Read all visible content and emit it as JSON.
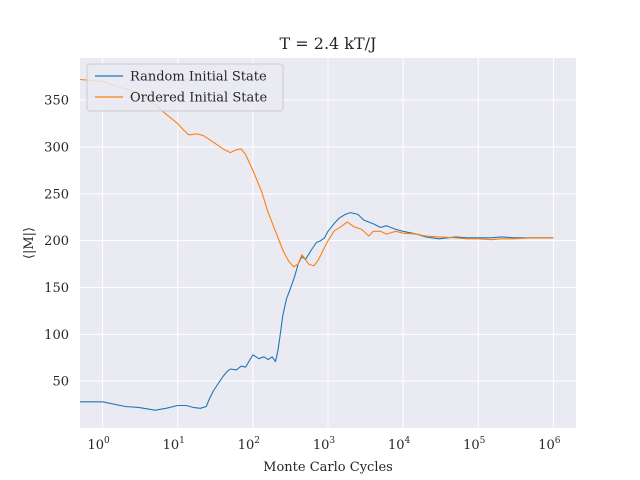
{
  "chart_data": {
    "type": "line",
    "title": "T = 2.4 kT/J",
    "xlabel": "Monte Carlo Cycles",
    "ylabel": "⟨|M|⟩",
    "x_scale": "log",
    "xlim": [
      0.5,
      2000000
    ],
    "ylim": [
      0,
      395
    ],
    "x_ticks": [
      {
        "value": 1,
        "label": "10",
        "exp": "0"
      },
      {
        "value": 10,
        "label": "10",
        "exp": "1"
      },
      {
        "value": 100,
        "label": "10",
        "exp": "2"
      },
      {
        "value": 1000,
        "label": "10",
        "exp": "3"
      },
      {
        "value": 10000,
        "label": "10",
        "exp": "4"
      },
      {
        "value": 100000,
        "label": "10",
        "exp": "5"
      },
      {
        "value": 1000000,
        "label": "10",
        "exp": "6"
      }
    ],
    "y_ticks": [
      50,
      100,
      150,
      200,
      250,
      300,
      350
    ],
    "grid": true,
    "legend_position": "top-left",
    "background_color": "#eaeaf2",
    "series": [
      {
        "name": "Random Initial State",
        "color": "#1f77b4",
        "points": [
          [
            0.5,
            28
          ],
          [
            1,
            28
          ],
          [
            2,
            23
          ],
          [
            3,
            22
          ],
          [
            5,
            19
          ],
          [
            7,
            21
          ],
          [
            10,
            24
          ],
          [
            13,
            24
          ],
          [
            16,
            22
          ],
          [
            20,
            21
          ],
          [
            24,
            23
          ],
          [
            26,
            30
          ],
          [
            30,
            40
          ],
          [
            35,
            48
          ],
          [
            40,
            55
          ],
          [
            45,
            60
          ],
          [
            50,
            63
          ],
          [
            60,
            62
          ],
          [
            70,
            66
          ],
          [
            80,
            65
          ],
          [
            90,
            72
          ],
          [
            100,
            78
          ],
          [
            110,
            76
          ],
          [
            120,
            74
          ],
          [
            140,
            76
          ],
          [
            160,
            73
          ],
          [
            180,
            76
          ],
          [
            200,
            71
          ],
          [
            215,
            82
          ],
          [
            230,
            98
          ],
          [
            250,
            120
          ],
          [
            280,
            138
          ],
          [
            320,
            150
          ],
          [
            360,
            162
          ],
          [
            400,
            175
          ],
          [
            450,
            183
          ],
          [
            500,
            180
          ],
          [
            550,
            185
          ],
          [
            600,
            190
          ],
          [
            700,
            198
          ],
          [
            800,
            200
          ],
          [
            900,
            203
          ],
          [
            1000,
            210
          ],
          [
            1200,
            218
          ],
          [
            1400,
            224
          ],
          [
            1700,
            228
          ],
          [
            2000,
            230
          ],
          [
            2500,
            228
          ],
          [
            3000,
            222
          ],
          [
            4000,
            218
          ],
          [
            5000,
            214
          ],
          [
            6000,
            216
          ],
          [
            8000,
            212
          ],
          [
            10000,
            210
          ],
          [
            15000,
            207
          ],
          [
            20000,
            204
          ],
          [
            30000,
            202
          ],
          [
            50000,
            204
          ],
          [
            70000,
            203
          ],
          [
            100000,
            203
          ],
          [
            150000,
            203
          ],
          [
            200000,
            204
          ],
          [
            300000,
            203
          ],
          [
            500000,
            203
          ],
          [
            1000000,
            203
          ]
        ]
      },
      {
        "name": "Ordered Initial State",
        "color": "#ff7f0e",
        "points": [
          [
            0.5,
            372
          ],
          [
            1,
            370
          ],
          [
            1.5,
            365
          ],
          [
            2,
            362
          ],
          [
            3,
            358
          ],
          [
            4,
            350
          ],
          [
            5,
            345
          ],
          [
            7,
            335
          ],
          [
            10,
            325
          ],
          [
            12,
            318
          ],
          [
            14,
            313
          ],
          [
            18,
            314
          ],
          [
            22,
            312
          ],
          [
            30,
            305
          ],
          [
            40,
            298
          ],
          [
            50,
            294
          ],
          [
            60,
            297
          ],
          [
            70,
            298
          ],
          [
            80,
            292
          ],
          [
            90,
            283
          ],
          [
            100,
            275
          ],
          [
            130,
            253
          ],
          [
            160,
            230
          ],
          [
            200,
            210
          ],
          [
            250,
            190
          ],
          [
            300,
            178
          ],
          [
            350,
            172
          ],
          [
            400,
            175
          ],
          [
            450,
            185
          ],
          [
            500,
            180
          ],
          [
            550,
            175
          ],
          [
            650,
            173
          ],
          [
            750,
            180
          ],
          [
            900,
            193
          ],
          [
            1000,
            200
          ],
          [
            1200,
            210
          ],
          [
            1500,
            215
          ],
          [
            1800,
            220
          ],
          [
            2200,
            215
          ],
          [
            2800,
            212
          ],
          [
            3500,
            205
          ],
          [
            4000,
            210
          ],
          [
            5000,
            210
          ],
          [
            6000,
            207
          ],
          [
            8000,
            210
          ],
          [
            10000,
            208
          ],
          [
            15000,
            207
          ],
          [
            20000,
            205
          ],
          [
            30000,
            204
          ],
          [
            50000,
            203
          ],
          [
            70000,
            202
          ],
          [
            100000,
            202
          ],
          [
            150000,
            201
          ],
          [
            200000,
            202
          ],
          [
            300000,
            202
          ],
          [
            500000,
            203
          ],
          [
            1000000,
            203
          ]
        ]
      }
    ]
  }
}
